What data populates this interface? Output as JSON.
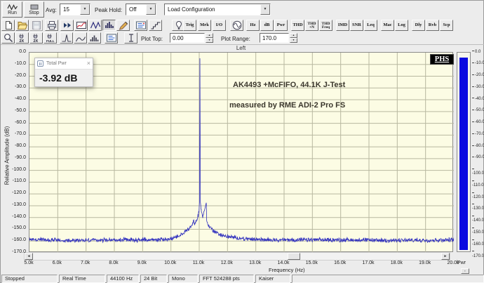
{
  "toolbar1": {
    "run_label": "Run",
    "stop_label": "Stop",
    "avg_label": "Avg:",
    "avg_value": "15",
    "peak_hold_label": "Peak Hold:",
    "peak_hold_value": "Off",
    "load_config_value": "Load Configuration"
  },
  "toolbar2": {
    "icons": [
      "new-file",
      "open-file",
      "save",
      "print",
      "fast-forward",
      "oscilloscope",
      "waveform",
      "spectrum-analyzer",
      "signal-generator",
      "device-test-plan",
      "step-response",
      "probe",
      "sine-generator"
    ],
    "text_buttons": [
      "Trig",
      "Mrk",
      "I/O",
      "Hz",
      "dB",
      "Pwr",
      "THD",
      "THD\n+N",
      "THD\nFreq",
      "IMD",
      "SNR",
      "Leq",
      "Mac",
      "Log",
      "Dly",
      "Rvb",
      "Scp"
    ]
  },
  "toolbar3": {
    "icons": [
      "zoom",
      "zoom-in-2x",
      "zoom-out-2x",
      "zoom-full",
      "peak-marker",
      "curve",
      "histogram",
      "display-settings",
      "cursor-reader"
    ],
    "icon_captions": [
      "2X",
      "2X",
      "FULL"
    ],
    "plot_top_label": "Plot Top:",
    "plot_top_value": "0.00",
    "plot_range_label": "Plot Range:",
    "plot_range_value": "170.0"
  },
  "window": {
    "channel_label": "Left",
    "logo": "PHS"
  },
  "overlay": {
    "title": "Total Pwr",
    "close": "×",
    "value": "-3.92 dB"
  },
  "meter": {
    "label": "Pwr",
    "value_db": -3.92,
    "bar_color": "#0a0ae0"
  },
  "status_bar": [
    "Stopped",
    "Real Time",
    "44100 Hz",
    "24 Bit",
    "Mono",
    "FFT 524288 pts",
    "Kaiser"
  ],
  "chart_data": {
    "type": "line",
    "title": "Left",
    "xlabel": "Frequency (Hz)",
    "ylabel": "Relative Amplitude (dB)",
    "xlim": [
      5000,
      20000
    ],
    "ylim": [
      -170,
      0
    ],
    "x_tick_step_hz": 1000,
    "y_tick_step_db": 10,
    "x_tick_labels": [
      "5.0k",
      "6.0k",
      "7.0k",
      "8.0k",
      "9.0k",
      "10.0k",
      "11.0k",
      "12.0k",
      "13.0k",
      "14.0k",
      "15.0k",
      "16.0k",
      "17.0k",
      "18.0k",
      "19.0k",
      "20.0k"
    ],
    "y_tick_labels": [
      "0.0",
      "-10.0",
      "-20.0",
      "-30.0",
      "-40.0",
      "-50.0",
      "-60.0",
      "-70.0",
      "-80.0",
      "-90.0",
      "-100.0",
      "-110.0",
      "-120.0",
      "-130.0",
      "-140.0",
      "-150.0",
      "-160.0",
      "-170.0"
    ],
    "grid": true,
    "legend_position": "none",
    "background_color": "#fcfce4",
    "grid_color": "#b8b8a0",
    "annotations": [
      {
        "text": "AK4493 +McFIFO, 44.1K J-Test"
      },
      {
        "text": "measured by RME ADI-2 Pro FS"
      }
    ],
    "total_power_label": "Total Pwr",
    "total_power_value_db": -3.92,
    "series": [
      {
        "name": "Left",
        "color": "#3232be",
        "peak_hz": 11025,
        "peak_db": -4.8,
        "noise_floor_db": -159,
        "noise_jitter_db": 2.2,
        "envelope_points": [
          [
            5000,
            -158.5
          ],
          [
            6500,
            -159.5
          ],
          [
            8000,
            -159
          ],
          [
            9500,
            -159
          ],
          [
            10050,
            -158
          ],
          [
            10300,
            -156
          ],
          [
            10500,
            -152
          ],
          [
            10650,
            -149
          ],
          [
            10760,
            -146
          ],
          [
            10795,
            -142
          ],
          [
            10830,
            -146
          ],
          [
            10900,
            -143
          ],
          [
            10955,
            -139
          ],
          [
            10990,
            -135
          ],
          [
            11010,
            -127
          ],
          [
            11025,
            -4.8
          ],
          [
            11042,
            -127
          ],
          [
            11075,
            -135
          ],
          [
            11130,
            -139
          ],
          [
            11250,
            -127.5
          ],
          [
            11262,
            -143
          ],
          [
            11340,
            -147
          ],
          [
            11450,
            -150
          ],
          [
            11600,
            -153
          ],
          [
            11850,
            -155.5
          ],
          [
            12200,
            -157
          ],
          [
            12800,
            -158.5
          ],
          [
            14000,
            -159
          ],
          [
            16000,
            -159
          ],
          [
            18000,
            -159.5
          ],
          [
            20000,
            -159
          ]
        ]
      }
    ]
  }
}
